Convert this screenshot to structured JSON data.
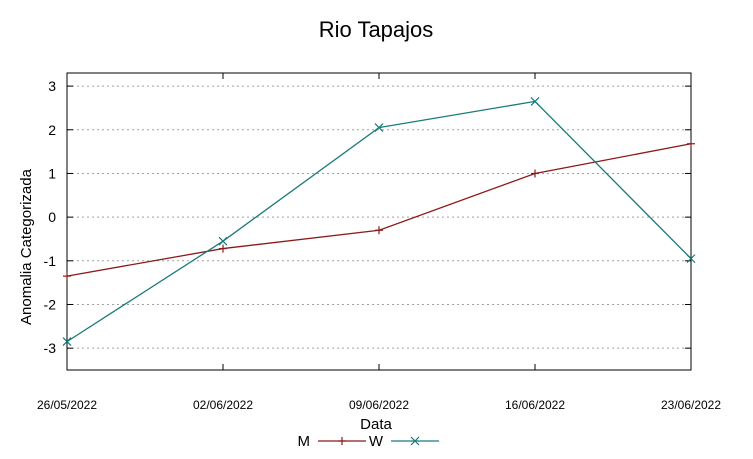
{
  "chart_data": {
    "type": "line",
    "title": "Rio Tapajos",
    "xlabel": "Data",
    "ylabel": "Anomalia Categorizada",
    "x": [
      "26/05/2022",
      "02/06/2022",
      "09/06/2022",
      "16/06/2022",
      "23/06/2022"
    ],
    "ylim": [
      -3.5,
      3.3
    ],
    "yticks": [
      "3",
      "2",
      "1",
      "0",
      "-1",
      "-2",
      "-3"
    ],
    "grid": true,
    "legend": "bottom",
    "series": [
      {
        "name": "M",
        "color": "#8b1a1a",
        "marker": "plus",
        "values": [
          -1.35,
          -0.72,
          -0.3,
          1.0,
          1.68
        ]
      },
      {
        "name": "W",
        "color": "#1a7a7a",
        "marker": "x",
        "values": [
          -2.85,
          -0.55,
          2.05,
          2.65,
          -0.95
        ]
      }
    ]
  }
}
